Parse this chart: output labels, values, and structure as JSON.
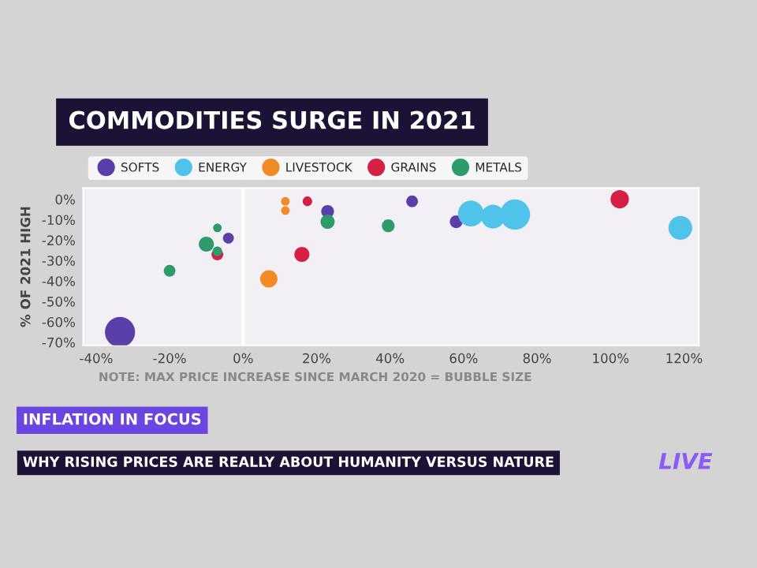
{
  "chart_data": {
    "type": "bubble",
    "title": "COMMODITIES SURGE IN 2021",
    "ylabel": "% OF 2021 HIGH",
    "annotations": [
      "NOTE: MAX PRICE INCREASE SINCE MARCH 2020 = BUBBLE SIZE",
      "INFLATION IN FOCUS",
      "WHY RISING PRICES ARE REALLY ABOUT HUMANITY VERSUS NATURE",
      "LIVE"
    ],
    "series": [
      {
        "name": "SOFTS",
        "color": "#5b3fa8",
        "x": [
          -33.5,
          -4,
          23,
          46,
          58
        ],
        "values": [
          -65,
          -19,
          -6,
          -1,
          -11
        ],
        "sizes": [
          1.0,
          0.13,
          0.18,
          0.15,
          0.18
        ]
      },
      {
        "name": "ENERGY",
        "color": "#4fc3ea",
        "x": [
          62,
          68,
          74,
          119
        ],
        "values": [
          -7,
          -8.5,
          -7.5,
          -14
        ],
        "sizes": [
          0.73,
          0.62,
          1.0,
          0.62
        ]
      },
      {
        "name": "LIVESTOCK",
        "color": "#f28a25",
        "x": [
          11.5,
          11.5,
          7
        ],
        "values": [
          -1,
          -5.5,
          -39
        ],
        "sizes": [
          0.08,
          0.08,
          0.33
        ]
      },
      {
        "name": "GRAINS",
        "color": "#d61f45",
        "x": [
          17.5,
          16,
          -7,
          102.5
        ],
        "values": [
          -1,
          -27,
          -27,
          0
        ],
        "sizes": [
          0.1,
          0.25,
          0.15,
          0.37
        ]
      },
      {
        "name": "METALS",
        "color": "#2e9b6a",
        "x": [
          -7,
          -10,
          -7,
          -20,
          23,
          39.5
        ],
        "values": [
          -14,
          -22,
          -25.5,
          -35,
          -11,
          -13
        ],
        "sizes": [
          0.08,
          0.25,
          0.1,
          0.15,
          0.22,
          0.18
        ]
      }
    ],
    "xlim": [
      -43.5,
      124
    ],
    "ylim": [
      -71.5,
      5.5
    ],
    "xticks": [
      {
        "value": -40,
        "label": "-40%"
      },
      {
        "value": -20,
        "label": "-20%"
      },
      {
        "value": 0,
        "label": "0%"
      },
      {
        "value": 20,
        "label": "20%"
      },
      {
        "value": 40,
        "label": "40%"
      },
      {
        "value": 60,
        "label": "60%"
      },
      {
        "value": 80,
        "label": "80%"
      },
      {
        "value": 100,
        "label": "100%"
      },
      {
        "value": 120,
        "label": "120%"
      }
    ],
    "yticks": [
      {
        "value": 0,
        "label": "0%"
      },
      {
        "value": -10,
        "label": "-10%"
      },
      {
        "value": -20,
        "label": "-20%"
      },
      {
        "value": -30,
        "label": "-30%"
      },
      {
        "value": -40,
        "label": "-40%"
      },
      {
        "value": -50,
        "label": "-50%"
      },
      {
        "value": -60,
        "label": "-60%"
      },
      {
        "value": -70,
        "label": "-70%"
      }
    ],
    "ref_lines": [
      {
        "axis": "x",
        "value": 0,
        "color": "#ffffff"
      }
    ],
    "legend": "top left",
    "grid": false
  }
}
